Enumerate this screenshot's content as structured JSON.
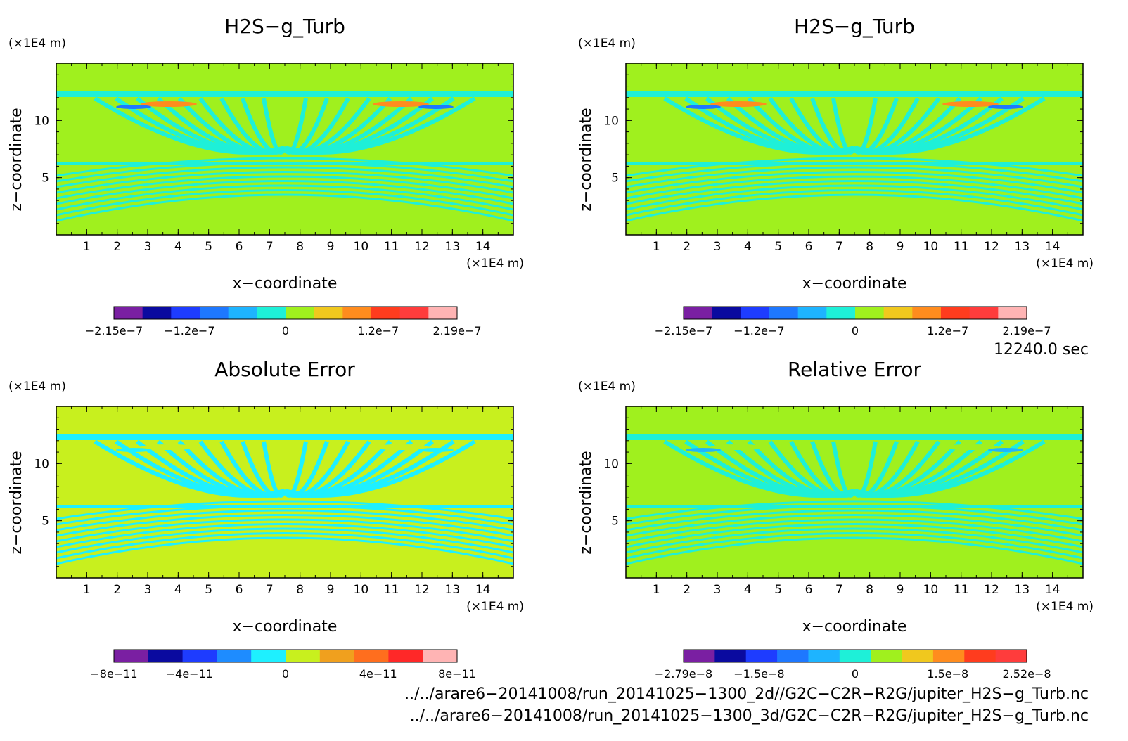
{
  "chart_data": [
    {
      "type": "heatmap",
      "title": "H2S−g_Turb",
      "xlabel": "x−coordinate",
      "ylabel": "z−coordinate",
      "x_unit": "(×1E4 m)",
      "y_unit": "(×1E4 m)",
      "x_ticks": [
        "1",
        "2",
        "3",
        "4",
        "5",
        "6",
        "7",
        "8",
        "9",
        "10",
        "11",
        "12",
        "13",
        "14"
      ],
      "y_ticks": [
        "5",
        "10"
      ],
      "xlim": [
        0,
        15
      ],
      "ylim": [
        0,
        15
      ],
      "colorbar": {
        "colors": [
          "#7a1fa2",
          "#0a0a9f",
          "#1e3cff",
          "#1e78ff",
          "#1eb4ff",
          "#1ef0d8",
          "#a0f01e",
          "#f0c81e",
          "#ff8c1e",
          "#ff3c1e",
          "#ff3c3c",
          "#ffb4b4"
        ],
        "labels": [
          "−2.15e−7",
          "−1.2e−7",
          "0",
          "1.2e−7",
          "2.19e−7"
        ]
      }
    },
    {
      "type": "heatmap",
      "title": "H2S−g_Turb",
      "xlabel": "x−coordinate",
      "ylabel": "z−coordinate",
      "x_unit": "(×1E4 m)",
      "y_unit": "(×1E4 m)",
      "x_ticks": [
        "1",
        "2",
        "3",
        "4",
        "5",
        "6",
        "7",
        "8",
        "9",
        "10",
        "11",
        "12",
        "13",
        "14"
      ],
      "y_ticks": [
        "5",
        "10"
      ],
      "xlim": [
        0,
        15
      ],
      "ylim": [
        0,
        15
      ],
      "colorbar": {
        "colors": [
          "#7a1fa2",
          "#0a0a9f",
          "#1e3cff",
          "#1e78ff",
          "#1eb4ff",
          "#1ef0d8",
          "#a0f01e",
          "#f0c81e",
          "#ff8c1e",
          "#ff3c1e",
          "#ff3c3c",
          "#ffb4b4"
        ],
        "labels": [
          "−2.15e−7",
          "−1.2e−7",
          "0",
          "1.2e−7",
          "2.19e−7"
        ]
      }
    },
    {
      "type": "heatmap",
      "title": "Absolute Error",
      "xlabel": "x−coordinate",
      "ylabel": "z−coordinate",
      "x_unit": "(×1E4 m)",
      "y_unit": "(×1E4 m)",
      "x_ticks": [
        "1",
        "2",
        "3",
        "4",
        "5",
        "6",
        "7",
        "8",
        "9",
        "10",
        "11",
        "12",
        "13",
        "14"
      ],
      "y_ticks": [
        "5",
        "10"
      ],
      "xlim": [
        0,
        15
      ],
      "ylim": [
        0,
        15
      ],
      "colorbar": {
        "colors": [
          "#7a1fa2",
          "#0a0a9f",
          "#1e3cff",
          "#1e8cff",
          "#1ef0ff",
          "#c8f01e",
          "#f0a01e",
          "#ff6e1e",
          "#ff2828",
          "#ffb4b4"
        ],
        "labels": [
          "−8e−11",
          "−4e−11",
          "0",
          "4e−11",
          "8e−11"
        ]
      }
    },
    {
      "type": "heatmap",
      "title": "Relative Error",
      "xlabel": "x−coordinate",
      "ylabel": "z−coordinate",
      "x_unit": "(×1E4 m)",
      "y_unit": "(×1E4 m)",
      "x_ticks": [
        "1",
        "2",
        "3",
        "4",
        "5",
        "6",
        "7",
        "8",
        "9",
        "10",
        "11",
        "12",
        "13",
        "14"
      ],
      "y_ticks": [
        "5",
        "10"
      ],
      "xlim": [
        0,
        15
      ],
      "ylim": [
        0,
        15
      ],
      "colorbar": {
        "colors": [
          "#7a1fa2",
          "#0a0a9f",
          "#1e3cff",
          "#1e78ff",
          "#1eb4ff",
          "#1ef0d8",
          "#a0f01e",
          "#f0c81e",
          "#ff8c1e",
          "#ff3c1e",
          "#ff3c3c"
        ],
        "labels": [
          "−2.79e−8",
          "−1.5e−8",
          "0",
          "1.5e−8",
          "2.52e−8"
        ]
      }
    }
  ],
  "time_label": "12240.0 sec",
  "files": [
    "../../arare6−20141008/run_20141025−1300_2d//G2C−C2R−R2G/jupiter_H2S−g_Turb.nc",
    "../../arare6−20141008/run_20141025−1300_3d/G2C−C2R−R2G/jupiter_H2S−g_Turb.nc"
  ]
}
